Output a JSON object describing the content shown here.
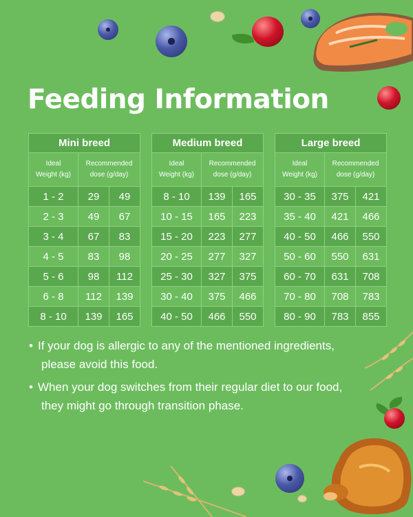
{
  "title": "Feeding Information",
  "tables": [
    {
      "name": "Mini breed",
      "weight_header": [
        "Ideal",
        "Weight (kg)"
      ],
      "dose_header": [
        "Recommended",
        "dose (g/day)"
      ],
      "rows": [
        {
          "weight": "1 - 2",
          "dose_min": "29",
          "dose_max": "49"
        },
        {
          "weight": "2 - 3",
          "dose_min": "49",
          "dose_max": "67"
        },
        {
          "weight": "3 - 4",
          "dose_min": "67",
          "dose_max": "83"
        },
        {
          "weight": "4 - 5",
          "dose_min": "83",
          "dose_max": "98"
        },
        {
          "weight": "5 - 6",
          "dose_min": "98",
          "dose_max": "112"
        },
        {
          "weight": "6 - 8",
          "dose_min": "112",
          "dose_max": "139"
        },
        {
          "weight": "8 - 10",
          "dose_min": "139",
          "dose_max": "165"
        }
      ]
    },
    {
      "name": "Medium breed",
      "weight_header": [
        "Ideal",
        "Weight (kg)"
      ],
      "dose_header": [
        "Recommended",
        "dose (g/day)"
      ],
      "rows": [
        {
          "weight": "8 - 10",
          "dose_min": "139",
          "dose_max": "165"
        },
        {
          "weight": "10 - 15",
          "dose_min": "165",
          "dose_max": "223"
        },
        {
          "weight": "15 - 20",
          "dose_min": "223",
          "dose_max": "277"
        },
        {
          "weight": "20 - 25",
          "dose_min": "277",
          "dose_max": "327"
        },
        {
          "weight": "25 - 30",
          "dose_min": "327",
          "dose_max": "375"
        },
        {
          "weight": "30 - 40",
          "dose_min": "375",
          "dose_max": "466"
        },
        {
          "weight": "40 - 50",
          "dose_min": "466",
          "dose_max": "550"
        }
      ]
    },
    {
      "name": "Large breed",
      "weight_header": [
        "Ideal",
        "Weight (kg)"
      ],
      "dose_header": [
        "Recommended",
        "dose (g/day)"
      ],
      "rows": [
        {
          "weight": "30 - 35",
          "dose_min": "375",
          "dose_max": "421"
        },
        {
          "weight": "35 - 40",
          "dose_min": "421",
          "dose_max": "466"
        },
        {
          "weight": "40 - 50",
          "dose_min": "466",
          "dose_max": "550"
        },
        {
          "weight": "50 - 60",
          "dose_min": "550",
          "dose_max": "631"
        },
        {
          "weight": "60 - 70",
          "dose_min": "631",
          "dose_max": "708"
        },
        {
          "weight": "70 - 80",
          "dose_min": "708",
          "dose_max": "783"
        },
        {
          "weight": "80 - 90",
          "dose_min": "783",
          "dose_max": "855"
        }
      ]
    }
  ],
  "notes": [
    {
      "bullet": "•",
      "line1": "If your dog is allergic to any of the mentioned  ingredients,",
      "line2": "please avoid this food."
    },
    {
      "bullet": "•",
      "line1": "When your dog switches from their regular diet to our food,",
      "line2": "they might go through transition phase."
    }
  ],
  "colors": {
    "background": "#6cbc5e",
    "table_dark": "#5aa84d",
    "grid": "#8fd07f",
    "text": "#ffffff"
  },
  "decorations": [
    "blueberry-icon",
    "cranberry-icon",
    "salmon-steak-icon",
    "roast-chicken-icon",
    "wheat-icon",
    "oat-flake-icon"
  ]
}
